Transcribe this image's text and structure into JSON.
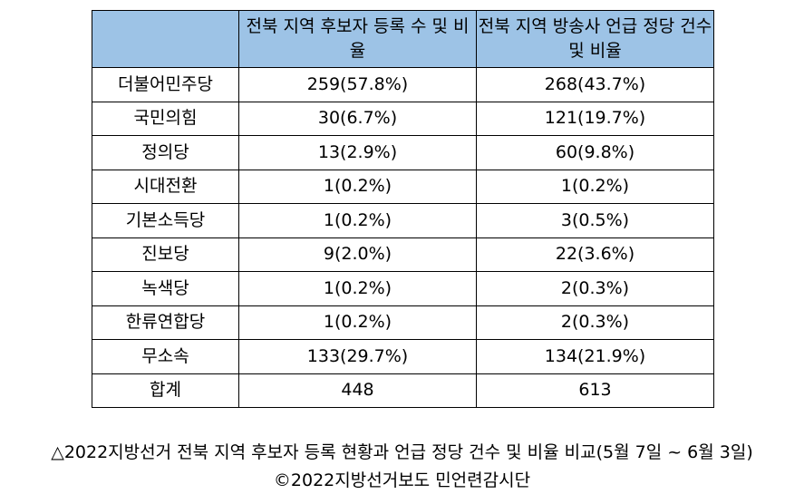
{
  "table": {
    "headers": [
      "",
      "전북 지역 후보자 등록 수 및 비율",
      "전북 지역 방송사 언급 정당 건수 및 비율"
    ],
    "rows": [
      [
        "더불어민주당",
        "259(57.8%)",
        "268(43.7%)"
      ],
      [
        "국민의힘",
        "30(6.7%)",
        "121(19.7%)"
      ],
      [
        "정의당",
        "13(2.9%)",
        "60(9.8%)"
      ],
      [
        "시대전환",
        "1(0.2%)",
        "1(0.2%)"
      ],
      [
        "기본소득당",
        "1(0.2%)",
        "3(0.5%)"
      ],
      [
        "진보당",
        "9(2.0%)",
        "22(3.6%)"
      ],
      [
        "녹색당",
        "1(0.2%)",
        "2(0.3%)"
      ],
      [
        "한류연합당",
        "1(0.2%)",
        "2(0.3%)"
      ],
      [
        "무소속",
        "133(29.7%)",
        "134(21.9%)"
      ],
      [
        "합계",
        "448",
        "613"
      ]
    ]
  },
  "caption": {
    "line1": "△2022지방선거 전북 지역 후보자 등록 현황과 언급 정당 건수 및 비율 비교(5월 7일 ~ 6월 3일)",
    "line2": "©2022지방선거보도 민언련감시단"
  },
  "colors": {
    "header_bg": "#9dc3e6",
    "border": "#000000"
  }
}
